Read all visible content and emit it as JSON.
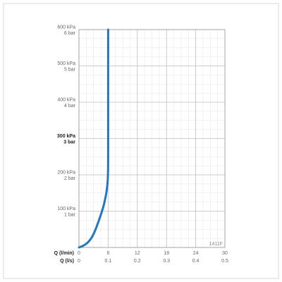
{
  "chart_data": {
    "type": "line",
    "code_label": "1411F",
    "x_axis_primary": {
      "title": "Q (l/min)",
      "ticks": [
        0,
        6,
        12,
        18,
        24,
        30
      ],
      "tick_labels": [
        "0",
        "6",
        "12",
        "18",
        "24",
        "30"
      ],
      "range": [
        0,
        30
      ]
    },
    "x_axis_secondary": {
      "title": "Q (l/s)",
      "tick_labels": [
        "0",
        "0.1",
        "0.2",
        "0.3",
        "0.4",
        "0.5"
      ]
    },
    "y_axis": {
      "range": [
        0,
        600
      ],
      "ticks": [
        {
          "value": 100,
          "kpa": "100 kPa",
          "bar": "1 bar",
          "bold": false
        },
        {
          "value": 200,
          "kpa": "200 kPa",
          "bar": "2 bar",
          "bold": false
        },
        {
          "value": 300,
          "kpa": "300 kPa",
          "bar": "3 bar",
          "bold": true
        },
        {
          "value": 400,
          "kpa": "400 kPa",
          "bar": "4 bar",
          "bold": false
        },
        {
          "value": 500,
          "kpa": "500 kPa",
          "bar": "5 bar",
          "bold": false
        },
        {
          "value": 600,
          "kpa": "600 kPa",
          "bar": "6 bar",
          "bold": false
        }
      ]
    },
    "grid": true,
    "series": [
      {
        "color": "#1f78c1",
        "points": [
          [
            0,
            0
          ],
          [
            1,
            5
          ],
          [
            2,
            15
          ],
          [
            3,
            35
          ],
          [
            4,
            70
          ],
          [
            5,
            110
          ],
          [
            5.5,
            140
          ],
          [
            5.8,
            165
          ],
          [
            6,
            200
          ],
          [
            6,
            300
          ],
          [
            6,
            400
          ],
          [
            6,
            500
          ],
          [
            6,
            600
          ]
        ]
      }
    ]
  }
}
